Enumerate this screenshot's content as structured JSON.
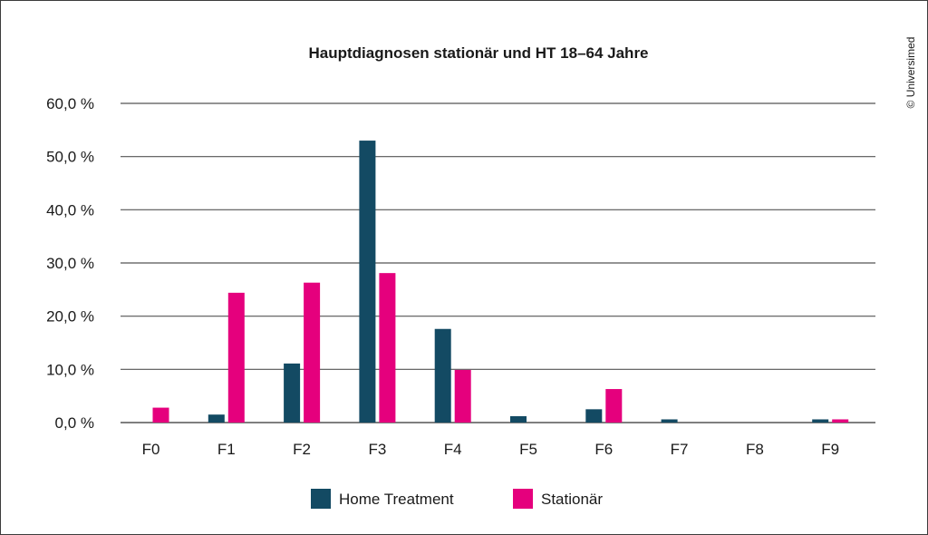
{
  "chart_data": {
    "type": "bar",
    "title": "Hauptdiagnosen stationär und HT 18–64 Jahre",
    "categories": [
      "F0",
      "F1",
      "F2",
      "F3",
      "F4",
      "F5",
      "F6",
      "F7",
      "F8",
      "F9"
    ],
    "series": [
      {
        "name": "Home Treatment",
        "color": "#134a63",
        "values": [
          0.0,
          1.5,
          11.1,
          53.0,
          17.6,
          1.2,
          2.5,
          0.6,
          0.0,
          0.6
        ]
      },
      {
        "name": "Stationär",
        "color": "#e5007d",
        "values": [
          2.8,
          24.4,
          26.3,
          28.1,
          9.9,
          0.0,
          6.3,
          0.0,
          0.0,
          0.6
        ]
      }
    ],
    "yticks": [
      "0,0 %",
      "10,0 %",
      "20,0 %",
      "30,0 %",
      "40,0 %",
      "50,0 %",
      "60,0 %"
    ],
    "ylim": [
      0,
      60
    ],
    "grid": true,
    "legend_position": "bottom"
  },
  "copyright": "© Universimed"
}
